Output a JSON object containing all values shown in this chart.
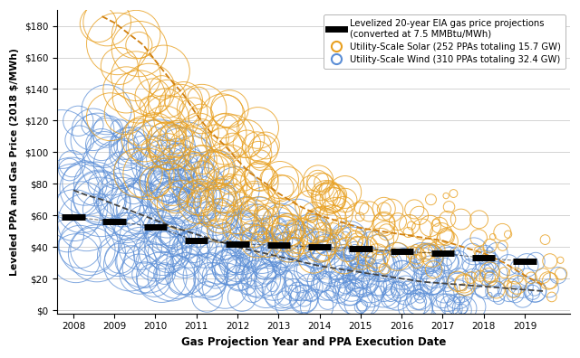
{
  "xlabel": "Gas Projection Year and PPA Execution Date",
  "ylabel": "Leveled PPA and Gas Price (2018 $/MWh)",
  "xlim": [
    2007.6,
    2020.1
  ],
  "ylim": [
    -2,
    190
  ],
  "yticks": [
    0,
    20,
    40,
    60,
    80,
    100,
    120,
    140,
    160,
    180
  ],
  "ytick_labels": [
    "$0",
    "$20",
    "$40",
    "$60",
    "$80",
    "$100",
    "$120",
    "$140",
    "$160",
    "$180"
  ],
  "xticks": [
    2008,
    2009,
    2010,
    2011,
    2012,
    2013,
    2014,
    2015,
    2016,
    2017,
    2018,
    2019
  ],
  "solar_color": "#E8A020",
  "wind_color": "#5B8ED6",
  "solar_trend_color": "#D08010",
  "wind_trend_color": "#555555",
  "legend_labels": [
    "Levelized 20-year EIA gas price projections\n(converted at 7.5 MMBtu/MWh)",
    "Utility-Scale Solar (252 PPAs totaling 15.7 GW)",
    "Utility-Scale Wind (310 PPAs totaling 32.4 GW)"
  ],
  "gas_x": [
    2008,
    2009,
    2010,
    2011,
    2012,
    2013,
    2014,
    2015,
    2016,
    2017,
    2018,
    2019
  ],
  "gas_y": [
    59,
    56,
    53,
    44,
    42,
    41,
    40,
    39,
    37,
    36,
    33,
    31
  ],
  "solar_trend_x": [
    2008.7,
    2009.0,
    2009.3,
    2009.7,
    2010.0,
    2010.3,
    2010.7,
    2011.0,
    2011.3,
    2011.7,
    2012.0,
    2012.3,
    2012.7,
    2013.0,
    2013.5,
    2014.0,
    2014.5,
    2015.0,
    2015.5,
    2016.0,
    2016.5,
    2017.0,
    2017.5,
    2018.0,
    2018.5,
    2019.0,
    2019.5
  ],
  "solar_trend_y": [
    186,
    182,
    176,
    168,
    158,
    148,
    136,
    124,
    114,
    104,
    95,
    87,
    80,
    74,
    66,
    60,
    56,
    52,
    50,
    48,
    46,
    44,
    40,
    36,
    30,
    22,
    15
  ],
  "wind_trend_x": [
    2008.0,
    2008.3,
    2008.7,
    2009.0,
    2009.3,
    2009.7,
    2010.0,
    2010.5,
    2011.0,
    2011.5,
    2012.0,
    2012.5,
    2013.0,
    2013.5,
    2014.0,
    2014.5,
    2015.0,
    2015.5,
    2016.0,
    2016.5,
    2017.0,
    2017.5,
    2018.0,
    2018.5,
    2019.0,
    2019.5
  ],
  "wind_trend_y": [
    76,
    73,
    70,
    67,
    64,
    60,
    57,
    52,
    48,
    44,
    40,
    37,
    34,
    31,
    28,
    26,
    24,
    22,
    20,
    18,
    17,
    16,
    15,
    14,
    13,
    12
  ],
  "background_color": "#ffffff",
  "grid_color": "#cccccc"
}
